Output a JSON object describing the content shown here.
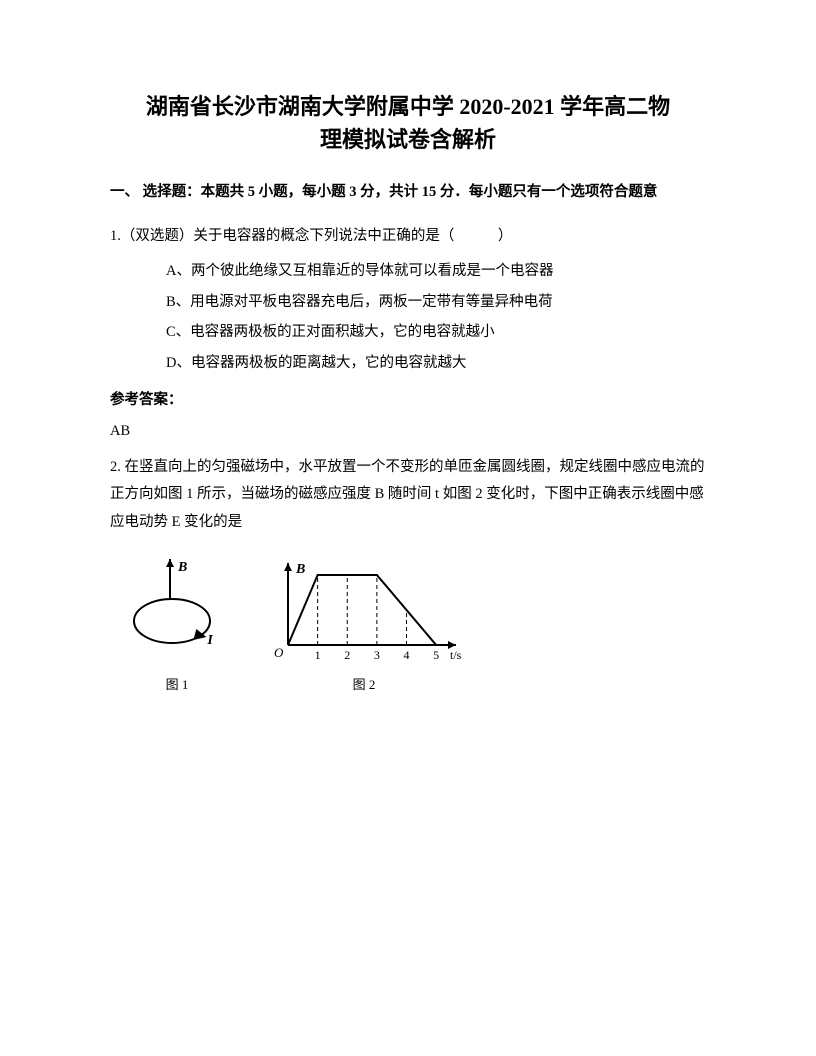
{
  "title_line1": "湖南省长沙市湖南大学附属中学 2020-2021 学年高二物",
  "title_line2": "理模拟试卷含解析",
  "section1_head": "一、 选择题：本题共 5 小题，每小题 3 分，共计 15 分．每小题只有一个选项符合题意",
  "q1": {
    "stem": "1.（双选题）关于电容器的概念下列说法中正确的是（　　　）",
    "optA": "A、两个彼此绝缘又互相靠近的导体就可以看成是一个电容器",
    "optB": "B、用电源对平板电容器充电后，两板一定带有等量异种电荷",
    "optC": "C、电容器两极板的正对面积越大，它的电容就越小",
    "optD": "D、电容器两极板的距离越大，它的电容就越大"
  },
  "ans_label": "参考答案：",
  "q1_ans": "AB",
  "q2": {
    "stem": "2. 在竖直向上的匀强磁场中，水平放置一个不变形的单匝金属圆线圈，规定线圈中感应电流的正方向如图 1 所示，当磁场的磁感应强度 B 随时间 t 如图 2 变化时，下图中正确表示线圈中感应电动势 E 变化的是"
  },
  "fig1": {
    "caption": "图 1",
    "B_label": "B",
    "I_label": "I",
    "stroke": "#000000",
    "stroke_width": 2
  },
  "fig2": {
    "caption": "图 2",
    "B_label": "B",
    "O_label": "O",
    "x_label": "t/s",
    "xticks": [
      "1",
      "2",
      "3",
      "4",
      "5"
    ],
    "stroke": "#000000",
    "stroke_width": 2,
    "dash": "4,3",
    "graph": {
      "points": [
        [
          0,
          0
        ],
        [
          1,
          1
        ],
        [
          3,
          1
        ],
        [
          5,
          0
        ]
      ],
      "xmax": 5,
      "ymax": 1,
      "plateau_start": 1,
      "plateau_end": 3,
      "dash_x": [
        1,
        2,
        3,
        4
      ]
    }
  }
}
